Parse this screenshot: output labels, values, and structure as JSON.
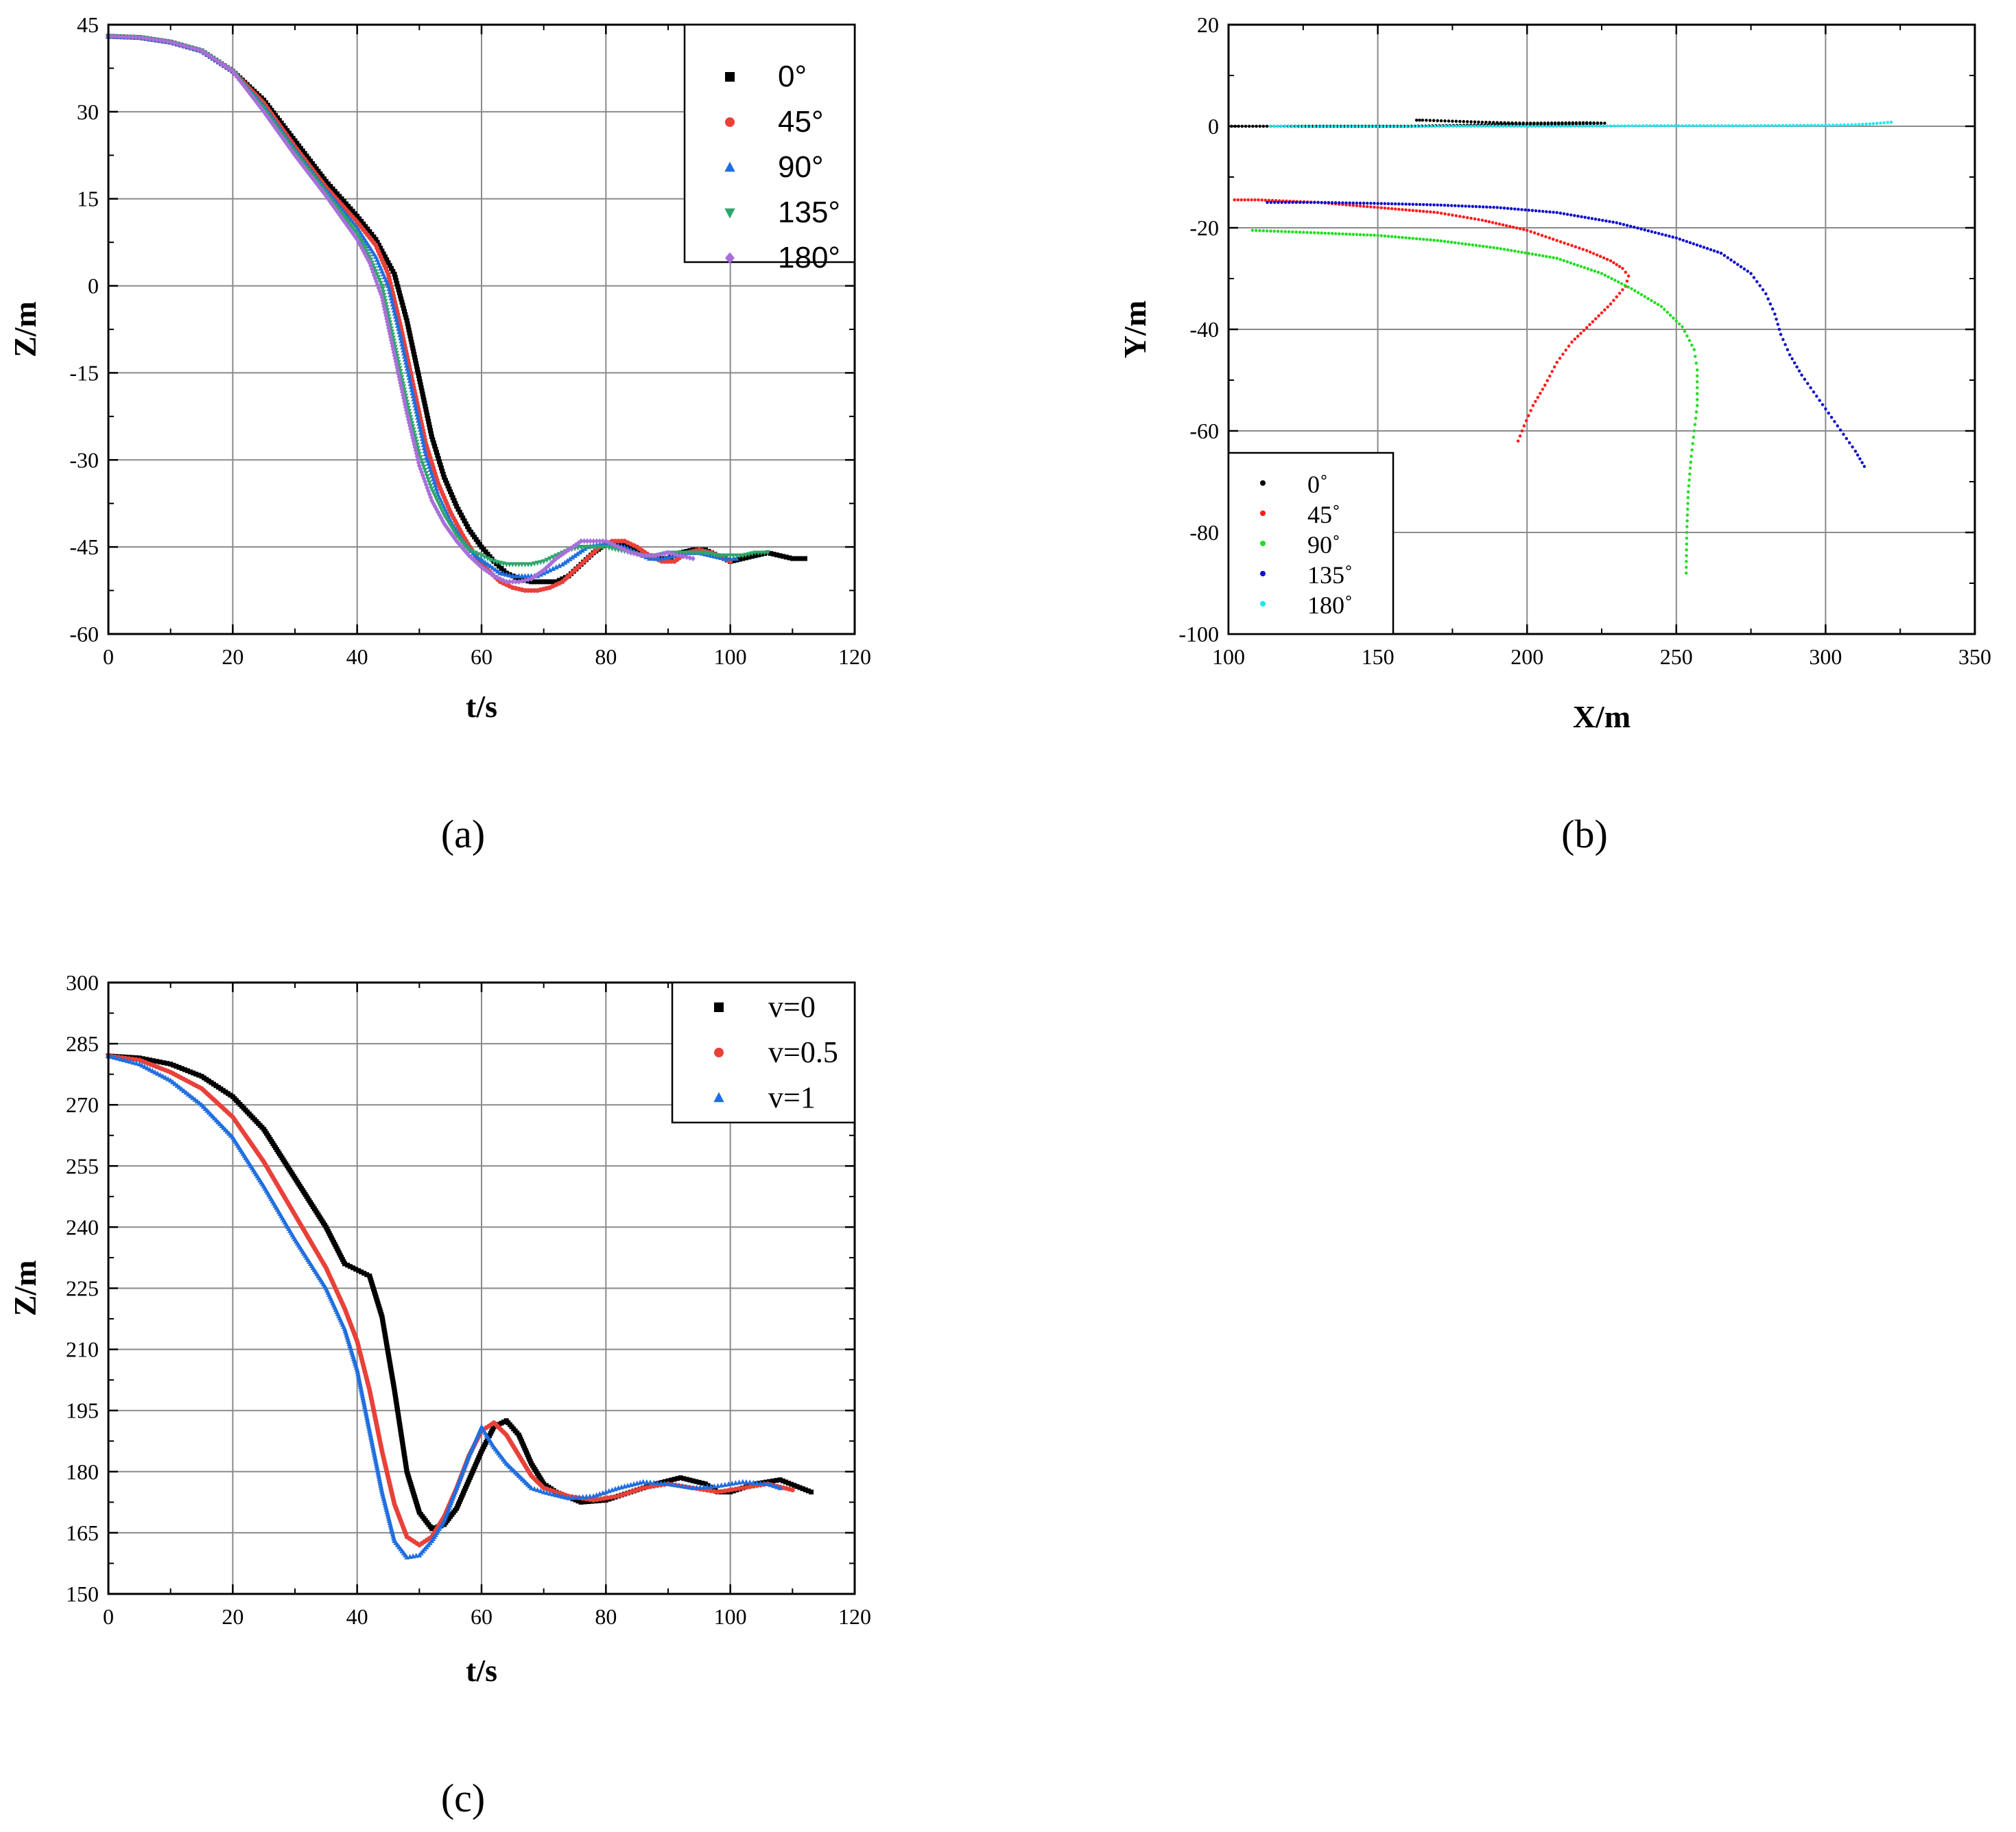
{
  "chart_data": [
    {
      "id": "a",
      "panel_label": "(a)",
      "type": "scatter",
      "xlabel": "t/s",
      "ylabel": "Z/m",
      "xlim": [
        0,
        120
      ],
      "ylim": [
        -60,
        45
      ],
      "xticks": [
        0,
        20,
        40,
        60,
        80,
        100,
        120
      ],
      "yticks": [
        -60,
        -45,
        -30,
        -15,
        0,
        15,
        30,
        45
      ],
      "grid": true,
      "legend_position": "top-right",
      "series": [
        {
          "name": "0°",
          "color": "#000000",
          "marker": "square",
          "x": [
            0,
            5,
            10,
            15,
            20,
            25,
            30,
            35,
            40,
            43,
            46,
            48,
            50,
            52,
            54,
            56,
            58,
            60,
            62,
            64,
            66,
            68,
            70,
            72,
            74,
            76,
            78,
            80,
            82,
            84,
            86,
            88,
            90,
            92,
            94,
            96,
            98,
            100,
            102,
            104,
            106,
            108,
            110,
            112
          ],
          "y": [
            43,
            42.8,
            42,
            40.5,
            37,
            32,
            25,
            18,
            12,
            8,
            2,
            -6,
            -16,
            -26,
            -33,
            -38,
            -42,
            -45,
            -47.5,
            -49.5,
            -50.5,
            -51,
            -51,
            -51,
            -50,
            -48,
            -46,
            -44.5,
            -44.5,
            -45,
            -46,
            -47,
            -47,
            -46,
            -45.5,
            -45.5,
            -46.5,
            -47.5,
            -47,
            -46.5,
            -46,
            -46.5,
            -47,
            -47
          ]
        },
        {
          "name": "45°",
          "color": "#e8413a",
          "marker": "circle",
          "x": [
            0,
            5,
            10,
            15,
            20,
            25,
            30,
            35,
            40,
            43,
            45,
            47,
            49,
            51,
            53,
            55,
            57,
            59,
            61,
            63,
            65,
            67,
            69,
            71,
            73,
            75,
            77,
            79,
            81,
            83,
            85,
            87,
            89,
            91,
            93,
            95,
            97,
            99,
            100
          ],
          "y": [
            43,
            42.8,
            42,
            40.5,
            37,
            31.5,
            24,
            17,
            11,
            7,
            2,
            -7,
            -17,
            -27,
            -34,
            -39,
            -43,
            -46.5,
            -49,
            -51,
            -52,
            -52.5,
            -52.5,
            -52,
            -51,
            -49,
            -47,
            -45,
            -44,
            -44,
            -45,
            -46.5,
            -47.5,
            -47.5,
            -46,
            -45.5,
            -46,
            -47,
            -47.5
          ]
        },
        {
          "name": "90°",
          "color": "#1f6ee0",
          "marker": "triangle-up",
          "x": [
            0,
            5,
            10,
            15,
            20,
            25,
            30,
            35,
            40,
            43,
            45,
            47,
            49,
            51,
            53,
            55,
            57,
            59,
            61,
            63,
            65,
            67,
            69,
            71,
            73,
            75,
            77,
            79,
            81,
            83,
            85,
            87,
            89,
            91,
            93,
            95,
            97,
            99,
            101
          ],
          "y": [
            43,
            42.8,
            42,
            40.5,
            37,
            31,
            23.5,
            16.5,
            10,
            5,
            0,
            -9,
            -19,
            -29,
            -36,
            -40.5,
            -44,
            -46.5,
            -48,
            -49.5,
            -50,
            -50,
            -50,
            -49,
            -48,
            -46.5,
            -45,
            -44.5,
            -44.5,
            -45,
            -46,
            -47,
            -47,
            -46.5,
            -46,
            -46,
            -46.5,
            -47,
            -47
          ]
        },
        {
          "name": "135°",
          "color": "#2ea66b",
          "marker": "triangle-down",
          "x": [
            0,
            5,
            10,
            15,
            20,
            25,
            30,
            35,
            40,
            42,
            44,
            46,
            48,
            50,
            52,
            54,
            56,
            58,
            60,
            62,
            64,
            66,
            68,
            70,
            72,
            74,
            76,
            78,
            80,
            82,
            84,
            86,
            88,
            90,
            92,
            94,
            96,
            98,
            100,
            102,
            104,
            106
          ],
          "y": [
            43,
            42.8,
            42,
            40.5,
            37,
            30.5,
            23,
            16,
            9,
            5,
            0,
            -10,
            -20,
            -29,
            -35,
            -39.5,
            -43,
            -45.5,
            -46.5,
            -47.5,
            -48,
            -48,
            -48,
            -47.5,
            -46.5,
            -45.5,
            -45,
            -45,
            -45,
            -45.5,
            -46,
            -46.5,
            -46.5,
            -46,
            -46,
            -46,
            -46,
            -46.5,
            -46.5,
            -46.5,
            -46,
            -46
          ]
        },
        {
          "name": "180°",
          "color": "#a86fd9",
          "marker": "diamond",
          "x": [
            0,
            5,
            10,
            15,
            20,
            25,
            30,
            35,
            40,
            42,
            44,
            46,
            48,
            50,
            52,
            54,
            56,
            58,
            60,
            62,
            64,
            66,
            68,
            70,
            72,
            74,
            76,
            78,
            80,
            82,
            84,
            86,
            88,
            90,
            92,
            94
          ],
          "y": [
            43,
            42.8,
            42,
            40.5,
            37,
            30,
            22.5,
            15.5,
            8,
            4,
            -2,
            -12,
            -22,
            -31,
            -37,
            -41,
            -44,
            -46.5,
            -48.5,
            -50,
            -51,
            -51,
            -50.5,
            -49,
            -47,
            -45.5,
            -44,
            -44,
            -44,
            -45,
            -46,
            -46.5,
            -46.5,
            -46,
            -46.5,
            -47
          ]
        }
      ]
    },
    {
      "id": "b",
      "panel_label": "(b)",
      "type": "scatter",
      "xlabel": "X/m",
      "ylabel": "Y/m",
      "xlim": [
        100,
        350
      ],
      "ylim": [
        -100,
        20
      ],
      "xticks": [
        100,
        150,
        200,
        250,
        300,
        350
      ],
      "yticks": [
        -100,
        -80,
        -60,
        -40,
        -20,
        0,
        20
      ],
      "grid": true,
      "legend_position": "bottom-left",
      "series": [
        {
          "name": "0˚",
          "color": "#000000",
          "marker": "dot",
          "x": [
            101,
            120,
            140,
            160,
            180,
            200,
            220,
            226,
            220,
            200,
            185,
            175,
            165,
            163
          ],
          "y": [
            0,
            0,
            0,
            0,
            0.2,
            0.4,
            0.5,
            0.6,
            0.7,
            0.6,
            0.8,
            1.0,
            1.2,
            1.2
          ]
        },
        {
          "name": "45˚",
          "color": "#ff1a1a",
          "marker": "dot",
          "x": [
            102,
            110,
            130,
            150,
            170,
            185,
            200,
            210,
            220,
            228,
            232,
            234,
            233,
            228,
            222,
            215,
            210,
            206,
            202,
            199,
            197
          ],
          "y": [
            -14.5,
            -14.5,
            -15,
            -16,
            -17,
            -18.5,
            -20.5,
            -22.5,
            -24.5,
            -26.5,
            -28,
            -29.5,
            -31.5,
            -35,
            -38.5,
            -42.5,
            -46.5,
            -51,
            -55,
            -59,
            -62
          ]
        },
        {
          "name": "90˚",
          "color": "#22dd22",
          "marker": "dot",
          "x": [
            108,
            130,
            150,
            170,
            190,
            210,
            225,
            235,
            245,
            252,
            256,
            257,
            257,
            256,
            255,
            254,
            253.5,
            253.3
          ],
          "y": [
            -20.5,
            -21,
            -21.5,
            -22.5,
            -24,
            -26,
            -29,
            -32,
            -35.5,
            -39.5,
            -44,
            -48,
            -55,
            -60,
            -65,
            -72,
            -80,
            -88
          ]
        },
        {
          "name": "135˚",
          "color": "#1010cc",
          "marker": "dot",
          "x": [
            113,
            130,
            150,
            170,
            190,
            210,
            230,
            250,
            265,
            275,
            280,
            283,
            285,
            288,
            292,
            298,
            304,
            310,
            313
          ],
          "y": [
            -15,
            -15,
            -15.2,
            -15.5,
            -16,
            -17,
            -19,
            -22,
            -25,
            -29,
            -33,
            -37,
            -41,
            -45,
            -49,
            -54,
            -59,
            -64,
            -67
          ]
        },
        {
          "name": "180˚",
          "color": "#22e5ee",
          "marker": "dot",
          "x": [
            114,
            130,
            150,
            180,
            210,
            240,
            270,
            300,
            310,
            316,
            322
          ],
          "y": [
            0,
            0,
            0,
            0,
            0,
            0.1,
            0.1,
            0.2,
            0.3,
            0.5,
            0.8
          ]
        }
      ]
    },
    {
      "id": "c",
      "panel_label": "(c)",
      "type": "scatter",
      "xlabel": "t/s",
      "ylabel": "Z/m",
      "xlim": [
        0,
        120
      ],
      "ylim": [
        150,
        300
      ],
      "xticks": [
        0,
        20,
        40,
        60,
        80,
        100,
        120
      ],
      "yticks": [
        150,
        165,
        180,
        195,
        210,
        225,
        240,
        255,
        270,
        285,
        300
      ],
      "grid": true,
      "legend_position": "top-right",
      "series": [
        {
          "name": "v=0",
          "color": "#000000",
          "marker": "square",
          "x": [
            0,
            5,
            10,
            15,
            20,
            25,
            30,
            35,
            38,
            42,
            44,
            46,
            48,
            50,
            52,
            54,
            56,
            58,
            60,
            62,
            64,
            66,
            68,
            70,
            72,
            76,
            80,
            84,
            88,
            92,
            96,
            98,
            100,
            104,
            108,
            113
          ],
          "y": [
            282,
            281.5,
            280,
            277,
            272,
            264,
            252,
            240,
            231,
            228,
            218,
            200,
            180,
            170,
            166,
            167,
            171,
            178,
            185,
            191,
            192.5,
            189,
            182,
            177,
            175,
            172.5,
            173,
            175,
            177,
            178.5,
            177,
            175,
            175,
            177,
            178,
            175
          ]
        },
        {
          "name": "v=0.5",
          "color": "#e8413a",
          "marker": "circle",
          "x": [
            0,
            5,
            10,
            15,
            20,
            25,
            30,
            35,
            38,
            40,
            42,
            44,
            46,
            48,
            50,
            52,
            54,
            56,
            58,
            60,
            62,
            64,
            66,
            68,
            70,
            74,
            78,
            82,
            86,
            90,
            94,
            98,
            102,
            106,
            110
          ],
          "y": [
            282,
            281,
            278,
            274,
            267,
            256,
            243,
            230,
            220,
            212,
            200,
            185,
            172,
            164,
            162,
            164,
            169,
            176,
            184,
            190,
            192,
            189,
            184,
            179,
            176,
            174,
            173,
            174,
            176,
            177,
            176,
            175,
            176,
            177,
            175.5
          ]
        },
        {
          "name": "v=1",
          "color": "#1f6ee0",
          "marker": "triangle-up",
          "x": [
            0,
            5,
            10,
            15,
            20,
            25,
            30,
            35,
            38,
            40,
            42,
            44,
            46,
            48,
            50,
            52,
            54,
            56,
            58,
            60,
            62,
            64,
            66,
            68,
            70,
            74,
            78,
            82,
            86,
            90,
            94,
            98,
            102,
            106,
            108
          ],
          "y": [
            282,
            280,
            276,
            270,
            262,
            250,
            237,
            225,
            215,
            205,
            190,
            175,
            163,
            159,
            159.5,
            163,
            168,
            176,
            184,
            191,
            186,
            182,
            179,
            176,
            175,
            173.5,
            174,
            176,
            177.5,
            177,
            176,
            176.5,
            177.5,
            177,
            176
          ]
        }
      ]
    }
  ]
}
